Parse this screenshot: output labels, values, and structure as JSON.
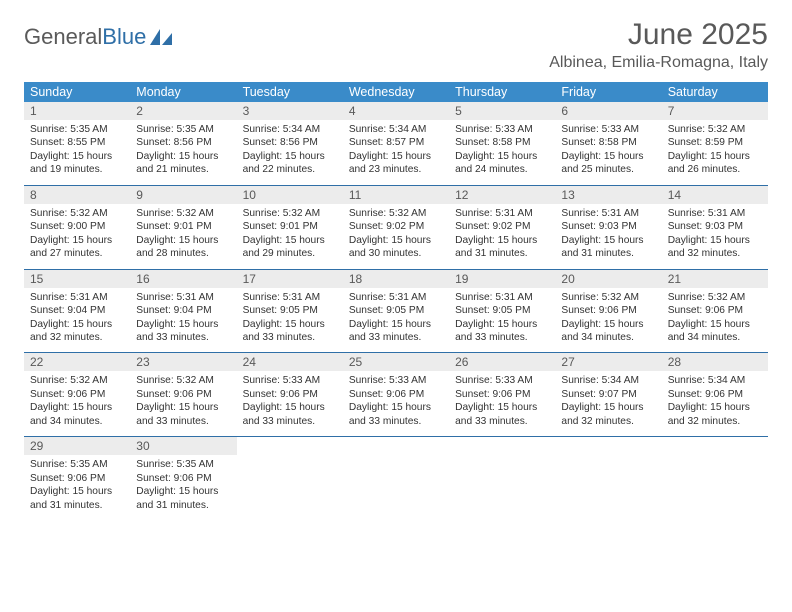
{
  "logo": {
    "text_gray": "General",
    "text_blue": "Blue"
  },
  "header": {
    "month_title": "June 2025",
    "location": "Albinea, Emilia-Romagna, Italy"
  },
  "colors": {
    "header_bg": "#3a8bc9",
    "header_text": "#ffffff",
    "daynum_bg": "#ececec",
    "rule": "#2f6fa7",
    "title": "#595959"
  },
  "dow": [
    "Sunday",
    "Monday",
    "Tuesday",
    "Wednesday",
    "Thursday",
    "Friday",
    "Saturday"
  ],
  "weeks": [
    [
      {
        "n": "1",
        "sr": "5:35 AM",
        "ss": "8:55 PM",
        "dl": "15 hours and 19 minutes."
      },
      {
        "n": "2",
        "sr": "5:35 AM",
        "ss": "8:56 PM",
        "dl": "15 hours and 21 minutes."
      },
      {
        "n": "3",
        "sr": "5:34 AM",
        "ss": "8:56 PM",
        "dl": "15 hours and 22 minutes."
      },
      {
        "n": "4",
        "sr": "5:34 AM",
        "ss": "8:57 PM",
        "dl": "15 hours and 23 minutes."
      },
      {
        "n": "5",
        "sr": "5:33 AM",
        "ss": "8:58 PM",
        "dl": "15 hours and 24 minutes."
      },
      {
        "n": "6",
        "sr": "5:33 AM",
        "ss": "8:58 PM",
        "dl": "15 hours and 25 minutes."
      },
      {
        "n": "7",
        "sr": "5:32 AM",
        "ss": "8:59 PM",
        "dl": "15 hours and 26 minutes."
      }
    ],
    [
      {
        "n": "8",
        "sr": "5:32 AM",
        "ss": "9:00 PM",
        "dl": "15 hours and 27 minutes."
      },
      {
        "n": "9",
        "sr": "5:32 AM",
        "ss": "9:01 PM",
        "dl": "15 hours and 28 minutes."
      },
      {
        "n": "10",
        "sr": "5:32 AM",
        "ss": "9:01 PM",
        "dl": "15 hours and 29 minutes."
      },
      {
        "n": "11",
        "sr": "5:32 AM",
        "ss": "9:02 PM",
        "dl": "15 hours and 30 minutes."
      },
      {
        "n": "12",
        "sr": "5:31 AM",
        "ss": "9:02 PM",
        "dl": "15 hours and 31 minutes."
      },
      {
        "n": "13",
        "sr": "5:31 AM",
        "ss": "9:03 PM",
        "dl": "15 hours and 31 minutes."
      },
      {
        "n": "14",
        "sr": "5:31 AM",
        "ss": "9:03 PM",
        "dl": "15 hours and 32 minutes."
      }
    ],
    [
      {
        "n": "15",
        "sr": "5:31 AM",
        "ss": "9:04 PM",
        "dl": "15 hours and 32 minutes."
      },
      {
        "n": "16",
        "sr": "5:31 AM",
        "ss": "9:04 PM",
        "dl": "15 hours and 33 minutes."
      },
      {
        "n": "17",
        "sr": "5:31 AM",
        "ss": "9:05 PM",
        "dl": "15 hours and 33 minutes."
      },
      {
        "n": "18",
        "sr": "5:31 AM",
        "ss": "9:05 PM",
        "dl": "15 hours and 33 minutes."
      },
      {
        "n": "19",
        "sr": "5:31 AM",
        "ss": "9:05 PM",
        "dl": "15 hours and 33 minutes."
      },
      {
        "n": "20",
        "sr": "5:32 AM",
        "ss": "9:06 PM",
        "dl": "15 hours and 34 minutes."
      },
      {
        "n": "21",
        "sr": "5:32 AM",
        "ss": "9:06 PM",
        "dl": "15 hours and 34 minutes."
      }
    ],
    [
      {
        "n": "22",
        "sr": "5:32 AM",
        "ss": "9:06 PM",
        "dl": "15 hours and 34 minutes."
      },
      {
        "n": "23",
        "sr": "5:32 AM",
        "ss": "9:06 PM",
        "dl": "15 hours and 33 minutes."
      },
      {
        "n": "24",
        "sr": "5:33 AM",
        "ss": "9:06 PM",
        "dl": "15 hours and 33 minutes."
      },
      {
        "n": "25",
        "sr": "5:33 AM",
        "ss": "9:06 PM",
        "dl": "15 hours and 33 minutes."
      },
      {
        "n": "26",
        "sr": "5:33 AM",
        "ss": "9:06 PM",
        "dl": "15 hours and 33 minutes."
      },
      {
        "n": "27",
        "sr": "5:34 AM",
        "ss": "9:07 PM",
        "dl": "15 hours and 32 minutes."
      },
      {
        "n": "28",
        "sr": "5:34 AM",
        "ss": "9:06 PM",
        "dl": "15 hours and 32 minutes."
      }
    ],
    [
      {
        "n": "29",
        "sr": "5:35 AM",
        "ss": "9:06 PM",
        "dl": "15 hours and 31 minutes."
      },
      {
        "n": "30",
        "sr": "5:35 AM",
        "ss": "9:06 PM",
        "dl": "15 hours and 31 minutes."
      },
      null,
      null,
      null,
      null,
      null
    ]
  ],
  "labels": {
    "sunrise": "Sunrise: ",
    "sunset": "Sunset: ",
    "daylight": "Daylight: "
  }
}
